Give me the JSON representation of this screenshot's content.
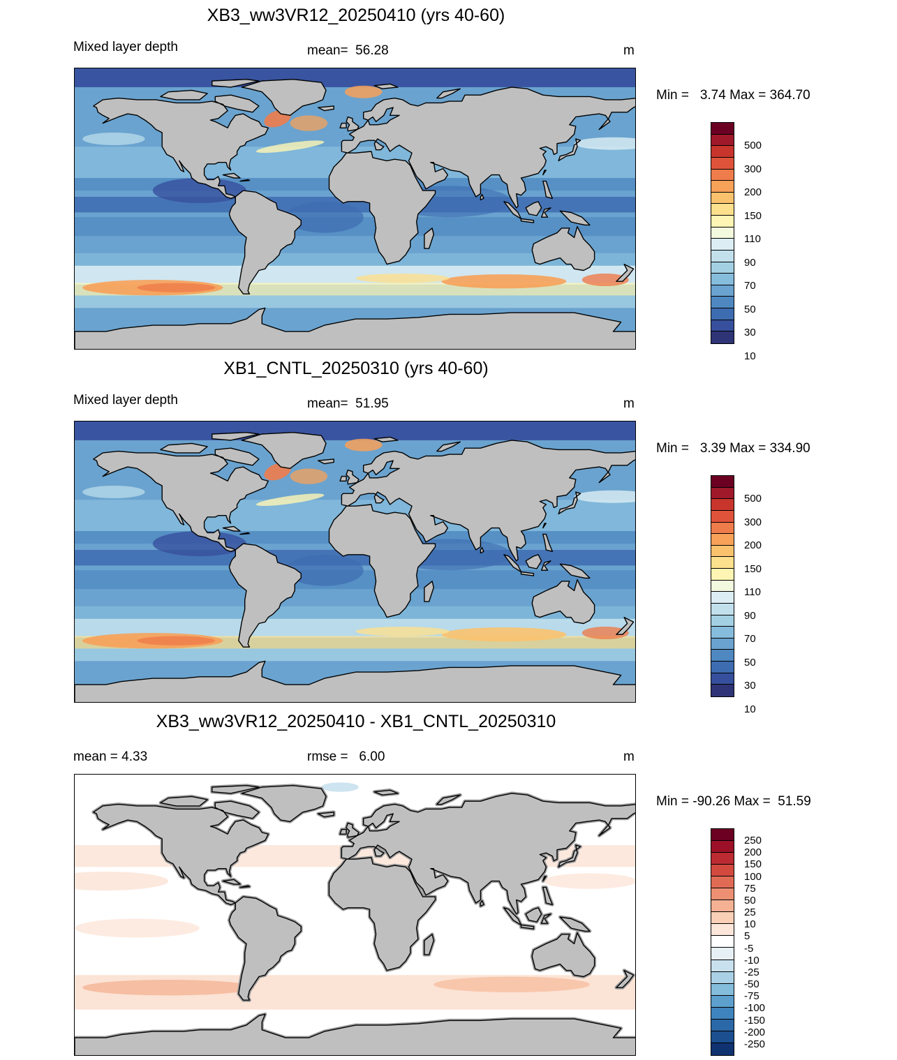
{
  "panels": [
    {
      "title": "XB3_ww3VR12_20250410 (yrs 40-60)",
      "left_text": "Mixed layer depth",
      "mid_text": "mean=  56.28",
      "unit": "m",
      "minmax": "Min =   3.74 Max = 364.70",
      "variant": "model_a"
    },
    {
      "title": "XB1_CNTL_20250310 (yrs 40-60)",
      "left_text": "Mixed layer depth",
      "mid_text": "mean=  51.95",
      "unit": "m",
      "minmax": "Min =   3.39 Max = 334.90",
      "variant": "model_b"
    },
    {
      "title": "XB3_ww3VR12_20250410 - XB1_CNTL_20250310",
      "left_text": "mean =   4.33",
      "mid_text": "rmse =   6.00",
      "unit": "m",
      "minmax": "Min = -90.26 Max =  51.59",
      "variant": "diff"
    }
  ],
  "colorbar_mld": {
    "colors": [
      "#6b0023",
      "#a0192a",
      "#c8352d",
      "#e0533b",
      "#ef7c4b",
      "#f7a159",
      "#fbc26e",
      "#fde08d",
      "#fef5b4",
      "#f3f9de",
      "#dcedf3",
      "#c1e0ec",
      "#a4d0e4",
      "#86bcdc",
      "#6aa3cf",
      "#4f88c1",
      "#3e6cb1",
      "#37509d",
      "#2e3475"
    ],
    "labels": [
      "500",
      "300",
      "200",
      "150",
      "110",
      "90",
      "70",
      "50",
      "30",
      "10"
    ]
  },
  "colorbar_diff": {
    "colors": [
      "#6b0023",
      "#9c1127",
      "#bc2b32",
      "#d2493f",
      "#e06b55",
      "#ec8f72",
      "#f4b193",
      "#f9cfb5",
      "#fce6d9",
      "#ffffff",
      "#e6f0f5",
      "#c9e1ee",
      "#a9d0e5",
      "#84bcdb",
      "#5d9fcd",
      "#3f84bd",
      "#2a68a8",
      "#1b4f8f",
      "#0f3270"
    ],
    "labels": [
      "250",
      "200",
      "150",
      "100",
      "75",
      "50",
      "25",
      "10",
      "5",
      "-5",
      "-10",
      "-25",
      "-50",
      "-75",
      "-100",
      "-150",
      "-200",
      "-250"
    ]
  },
  "colors": {
    "land": "#bfbfbf",
    "coast": "#000000"
  }
}
